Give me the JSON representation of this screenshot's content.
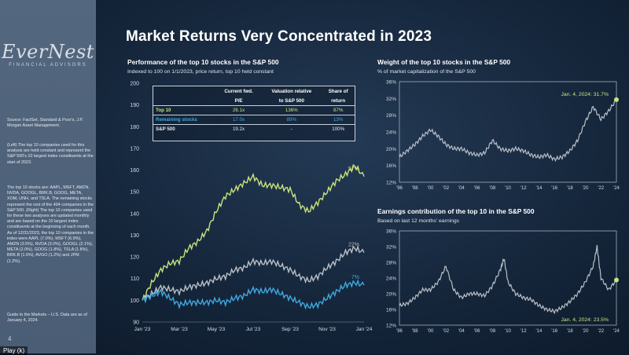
{
  "title": "Market Returns Very Concentrated in 2023",
  "logo": {
    "name": "EverNest",
    "tagline": "FINANCIAL ADVISORS"
  },
  "sidebar": {
    "source": "Source: FactSet, Standard & Poor's, J.P. Morgan Asset Management.",
    "para1": "(Left) The top 10 companies used for this analysis are held constant and represent the S&P 500's 10 largest index constituents at the start of 2023.",
    "para2": "The top 10 stocks are: AAPL, MSFT, AMZN, NVDA, GOOGL, BRK.B, GOOG, META, XOM, UNH, and TSLA. The remaining stocks represent the rest of the 494 companies in the S&P 500. (Right) The top 10 companies used for these two analyses are updated monthly and are based on the 10 largest index constituents at the beginning of each month. As of 12/31/2023, the top 10 companies in the index were AAPL (7.0%), MSFT (6.9%), AMZN (3.5%), NVDA (3.0%), GOOGL (2.1%), META (2.0%), GOOG (1.8%), TSLA (1.8%), BRK.B (1.6%), AVGO (1.2%) and JPM (1.2%).",
    "para3": "Guide to the Markets – U.S. Data are as of January 4, 2024.",
    "page_number": "4",
    "play_label": "Play (k)"
  },
  "table": {
    "headers": [
      "",
      "Current fwd. P/E",
      "Valuation relative to S&P 500",
      "Share of return"
    ],
    "header_lines": [
      [
        "",
        ""
      ],
      [
        "Current fwd.",
        "P/E"
      ],
      [
        "Valuation relative",
        "to S&P 500"
      ],
      [
        "Share of",
        "return"
      ]
    ],
    "rows": [
      {
        "label": "Top 10",
        "pe": "26.1x",
        "rel": "136%",
        "share": "87%"
      },
      {
        "label": "Remaining stocks",
        "pe": "17.0x",
        "rel": "89%",
        "share": "13%"
      },
      {
        "label": "S&P 500",
        "pe": "19.2x",
        "rel": "-",
        "share": "100%"
      }
    ]
  },
  "colors": {
    "top10": "#c9e37b",
    "remaining": "#3fa9e0",
    "sp500": "#b9bfc7",
    "marker": "#c9e37b"
  },
  "chart_data": [
    {
      "type": "line",
      "title": "Performance of the top 10 stocks in the S&P 500",
      "subtitle": "Indexed to 100 on 1/1/2023, price return, top 10 held constant",
      "ylim": [
        90,
        200
      ],
      "yticks": [
        90,
        100,
        110,
        120,
        130,
        140,
        150,
        160,
        170,
        180,
        190,
        200
      ],
      "xlim": [
        0,
        12
      ],
      "xticks": [
        {
          "x": 0,
          "label": "Jan '23"
        },
        {
          "x": 2,
          "label": "Mar '23"
        },
        {
          "x": 4,
          "label": "May '23"
        },
        {
          "x": 6,
          "label": "Jul '23"
        },
        {
          "x": 8,
          "label": "Sep '23"
        },
        {
          "x": 10,
          "label": "Nov '23"
        },
        {
          "x": 12,
          "label": "Jan '24"
        }
      ],
      "series": [
        {
          "name": "Top 10",
          "end_label": "57%",
          "x": [
            0,
            0.5,
            1,
            1.5,
            2,
            2.5,
            3,
            3.5,
            4,
            4.5,
            5,
            5.5,
            6,
            6.5,
            7,
            7.5,
            8,
            8.5,
            9,
            9.5,
            10,
            10.5,
            11,
            11.5,
            12
          ],
          "values": [
            100,
            108,
            114,
            117,
            118,
            124,
            127,
            132,
            141,
            148,
            151,
            154,
            157,
            153,
            153,
            152,
            151,
            144,
            141,
            145,
            150,
            155,
            158,
            162,
            157
          ]
        },
        {
          "name": "S&P 500",
          "end_label": "22%",
          "x": [
            0,
            0.5,
            1,
            1.5,
            2,
            2.5,
            3,
            3.5,
            4,
            4.5,
            5,
            5.5,
            6,
            6.5,
            7,
            7.5,
            8,
            8.5,
            9,
            9.5,
            10,
            10.5,
            11,
            11.5,
            12
          ],
          "values": [
            100,
            103,
            106,
            105,
            104,
            106,
            107,
            108,
            110,
            111,
            114,
            115,
            118,
            117,
            118,
            116,
            114,
            111,
            109,
            111,
            115,
            118,
            122,
            124,
            122
          ]
        },
        {
          "name": "Remaining stocks",
          "end_label": "7%",
          "x": [
            0,
            0.5,
            1,
            1.5,
            2,
            2.5,
            3,
            3.5,
            4,
            4.5,
            5,
            5.5,
            6,
            6.5,
            7,
            7.5,
            8,
            8.5,
            9,
            9.5,
            10,
            10.5,
            11,
            11.5,
            12
          ],
          "values": [
            100,
            102,
            104,
            101,
            98,
            99,
            99,
            99,
            100,
            99,
            101,
            102,
            105,
            104,
            105,
            103,
            101,
            99,
            97,
            98,
            101,
            104,
            107,
            108,
            107
          ]
        }
      ]
    },
    {
      "type": "line",
      "title": "Weight of the top 10 stocks in the S&P 500",
      "subtitle": "% of market capitalization of the S&P 500",
      "ylim": [
        12,
        36
      ],
      "yticks": [
        "12%",
        "16%",
        "20%",
        "24%",
        "28%",
        "32%",
        "36%"
      ],
      "ytick_values": [
        12,
        16,
        20,
        24,
        28,
        32,
        36
      ],
      "xlim": [
        1996,
        2024
      ],
      "xticks": [
        "'96",
        "'98",
        "'00",
        "'02",
        "'04",
        "'06",
        "'08",
        "'10",
        "'12",
        "'14",
        "'16",
        "'18",
        "'20",
        "'22",
        "'24"
      ],
      "xtick_values": [
        1996,
        1998,
        2000,
        2002,
        2004,
        2006,
        2008,
        2010,
        2012,
        2014,
        2016,
        2018,
        2020,
        2022,
        2024
      ],
      "annotation": "Jan. 4, 2024: 31.7%",
      "series": [
        {
          "name": "",
          "x": [
            1996,
            1997,
            1998,
            1999,
            2000,
            2001,
            2002,
            2003,
            2004,
            2005,
            2006,
            2007,
            2008,
            2009,
            2010,
            2011,
            2012,
            2013,
            2014,
            2015,
            2016,
            2017,
            2018,
            2019,
            2020,
            2021,
            2022,
            2023,
            2024
          ],
          "values": [
            18,
            19.5,
            21,
            23,
            24.5,
            23,
            21,
            20,
            20,
            19,
            18.5,
            19,
            22,
            20,
            19.5,
            20,
            19.5,
            18.5,
            18,
            18.5,
            17.5,
            18,
            19.5,
            22,
            26.5,
            30,
            27,
            29,
            31.7
          ]
        }
      ]
    },
    {
      "type": "line",
      "title": "Earnings contribution of the top 10 in the S&P 500",
      "subtitle": "Based on last 12 months' earnings",
      "ylim": [
        12,
        36
      ],
      "yticks": [
        "12%",
        "16%",
        "20%",
        "24%",
        "28%",
        "32%",
        "36%"
      ],
      "ytick_values": [
        12,
        16,
        20,
        24,
        28,
        32,
        36
      ],
      "xlim": [
        1996,
        2024
      ],
      "xticks": [
        "'96",
        "'98",
        "'00",
        "'02",
        "'04",
        "'06",
        "'08",
        "'10",
        "'12",
        "'14",
        "'16",
        "'18",
        "'20",
        "'22",
        "'24"
      ],
      "xtick_values": [
        1996,
        1998,
        2000,
        2002,
        2004,
        2006,
        2008,
        2010,
        2012,
        2014,
        2016,
        2018,
        2020,
        2022,
        2024
      ],
      "annotation": "Jan. 4, 2024: 23.5%",
      "series": [
        {
          "name": "",
          "x": [
            1996,
            1997,
            1998,
            1999,
            2000,
            2001,
            2002,
            2003,
            2004,
            2005,
            2006,
            2007,
            2008,
            2009,
            2009.5,
            2010,
            2011,
            2012,
            2013,
            2014,
            2015,
            2016,
            2017,
            2018,
            2019,
            2020,
            2021,
            2021.5,
            2022,
            2023,
            2024
          ],
          "values": [
            17,
            17.5,
            19,
            21,
            21,
            23,
            27,
            21,
            19,
            20,
            20,
            19.5,
            22,
            26,
            29,
            23,
            20,
            19,
            18.5,
            17,
            16,
            15.5,
            16.5,
            18,
            20,
            23,
            27,
            32,
            24,
            21,
            23.5
          ]
        }
      ]
    }
  ]
}
